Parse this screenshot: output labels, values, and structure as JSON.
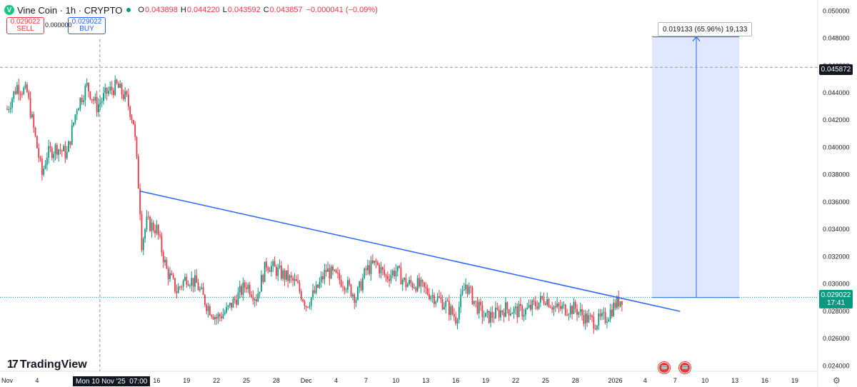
{
  "header": {
    "symbol": "Vine Coin · 1h · CRYPTO",
    "logo_icon": "vine-coin-logo-icon",
    "open_label": "O",
    "open": "0.043898",
    "high_label": "H",
    "high": "0.044220",
    "low_label": "L",
    "low": "0.043592",
    "close_label": "C",
    "close": "0.043857",
    "change": "−0.000041 (−0.09%)"
  },
  "trade": {
    "sell_price": "0.029022",
    "sell_label": "SELL",
    "spread": "0.000000",
    "buy_price": "0.029022",
    "buy_label": "BUY"
  },
  "branding": {
    "name": "TradingView",
    "icon": "tradingview-logo-icon"
  },
  "colors": {
    "up": "#089981",
    "down": "#f23645",
    "trendline": "#2962ff",
    "measure_fill": "#dbe5ff"
  },
  "chart_data": {
    "type": "candlestick",
    "ylim": [
      0.0236,
      0.0508
    ],
    "y_ticks": [
      "0.024000",
      "0.026000",
      "0.028000",
      "0.030000",
      "0.032000",
      "0.034000",
      "0.036000",
      "0.038000",
      "0.040000",
      "0.042000",
      "0.044000",
      "0.046000",
      "0.048000",
      "0.050000"
    ],
    "y_tick_values": [
      0.024,
      0.026,
      0.028,
      0.03,
      0.032,
      0.034,
      0.036,
      0.038,
      0.04,
      0.042,
      0.044,
      0.046,
      0.048,
      0.05
    ],
    "x_ticks": [
      {
        "label": "Nov",
        "day": 0
      },
      {
        "label": "4",
        "day": 3
      },
      {
        "label": "16",
        "day": 15
      },
      {
        "label": "19",
        "day": 18
      },
      {
        "label": "22",
        "day": 21
      },
      {
        "label": "25",
        "day": 24
      },
      {
        "label": "28",
        "day": 27
      },
      {
        "label": "Dec",
        "day": 30
      },
      {
        "label": "4",
        "day": 33
      },
      {
        "label": "7",
        "day": 36
      },
      {
        "label": "10",
        "day": 39
      },
      {
        "label": "13",
        "day": 42
      },
      {
        "label": "16",
        "day": 45
      },
      {
        "label": "19",
        "day": 48
      },
      {
        "label": "22",
        "day": 51
      },
      {
        "label": "25",
        "day": 54
      },
      {
        "label": "28",
        "day": 57
      },
      {
        "label": "2026",
        "day": 61
      },
      {
        "label": "4",
        "day": 64
      },
      {
        "label": "7",
        "day": 67
      },
      {
        "label": "10",
        "day": 70
      },
      {
        "label": "13",
        "day": 73
      },
      {
        "label": "16",
        "day": 76
      },
      {
        "label": "19",
        "day": 79
      }
    ],
    "close_path": [
      [
        0,
        0.0428
      ],
      [
        1,
        0.0445
      ],
      [
        2,
        0.044
      ],
      [
        3,
        0.04
      ],
      [
        3.5,
        0.038
      ],
      [
        4,
        0.0395
      ],
      [
        5,
        0.04
      ],
      [
        6,
        0.0395
      ],
      [
        7,
        0.043
      ],
      [
        8,
        0.0445
      ],
      [
        9,
        0.043
      ],
      [
        10,
        0.044
      ],
      [
        11,
        0.0445
      ],
      [
        12,
        0.0435
      ],
      [
        12.7,
        0.0418
      ],
      [
        13.3,
        0.036
      ],
      [
        13.5,
        0.033
      ],
      [
        14,
        0.0345
      ],
      [
        15,
        0.034
      ],
      [
        16,
        0.031
      ],
      [
        17,
        0.0295
      ],
      [
        18,
        0.0305
      ],
      [
        19,
        0.03
      ],
      [
        20,
        0.0285
      ],
      [
        21,
        0.0275
      ],
      [
        22,
        0.028
      ],
      [
        23,
        0.029
      ],
      [
        24,
        0.03
      ],
      [
        25,
        0.029
      ],
      [
        26,
        0.0315
      ],
      [
        27,
        0.031
      ],
      [
        28,
        0.0305
      ],
      [
        29,
        0.03
      ],
      [
        30,
        0.0285
      ],
      [
        31,
        0.0295
      ],
      [
        32,
        0.031
      ],
      [
        33,
        0.0305
      ],
      [
        34,
        0.03
      ],
      [
        35,
        0.029
      ],
      [
        36,
        0.031
      ],
      [
        37,
        0.0315
      ],
      [
        38,
        0.0305
      ],
      [
        39,
        0.031
      ],
      [
        40,
        0.03
      ],
      [
        41,
        0.03
      ],
      [
        42,
        0.0295
      ],
      [
        43,
        0.029
      ],
      [
        44,
        0.0285
      ],
      [
        45,
        0.0275
      ],
      [
        46,
        0.03
      ],
      [
        47,
        0.0285
      ],
      [
        48,
        0.0275
      ],
      [
        49,
        0.0278
      ],
      [
        50,
        0.0282
      ],
      [
        51,
        0.028
      ],
      [
        52,
        0.028
      ],
      [
        53,
        0.0285
      ],
      [
        54,
        0.029
      ],
      [
        55,
        0.0282
      ],
      [
        56,
        0.0282
      ],
      [
        57,
        0.0282
      ],
      [
        58,
        0.0275
      ],
      [
        59,
        0.0272
      ],
      [
        60,
        0.0275
      ],
      [
        61,
        0.0285
      ],
      [
        61.7,
        0.029
      ]
    ],
    "trendline": [
      [
        13.3,
        0.0368
      ],
      [
        65.5,
        0.0282
      ]
    ],
    "measure": {
      "from": 0.029,
      "to": 0.0481,
      "label": "0.019133 (65.96%) 19,133",
      "day_start": 66,
      "day_end": 74
    },
    "current_price": "0.029022",
    "countdown": "17:41",
    "crosshair_price": "0.045872",
    "crosshair_price_value": 0.045872,
    "crosshair_time": "Mon 10 Nov '25",
    "crosshair_hour": "07:00",
    "crosshair_day": 9.3,
    "event_days": [
      65.5,
      68.5
    ]
  }
}
